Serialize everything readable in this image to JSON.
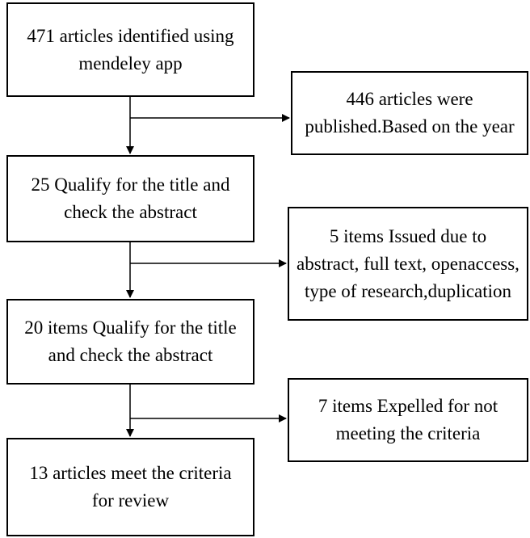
{
  "flow": {
    "main_boxes": [
      {
        "lines": [
          "471 articles identified using",
          "mendeley app"
        ]
      },
      {
        "lines": [
          "25 Qualify for the title and",
          "check the abstract"
        ]
      },
      {
        "lines": [
          "20 items Qualify for the title",
          "and check the abstract"
        ]
      },
      {
        "lines": [
          "13 articles meet the criteria",
          "for review"
        ]
      }
    ],
    "side_boxes": [
      {
        "lines": [
          "446 articles were",
          "published.Based on the year"
        ]
      },
      {
        "lines": [
          "5 items  Issued due to",
          "abstract, full text, openaccess,",
          "type of research,duplication"
        ]
      },
      {
        "lines": [
          "7 items Expelled for not",
          "meeting the criteria"
        ]
      }
    ]
  }
}
